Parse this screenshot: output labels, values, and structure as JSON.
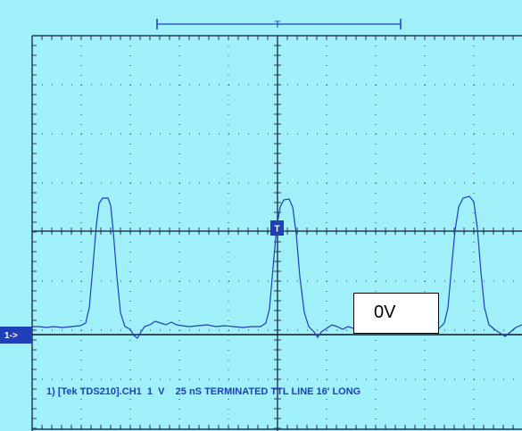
{
  "screen": {
    "background_color": "#9ff0f8",
    "grid_color": "#2a3b55",
    "trace_color": "#1f3fb8",
    "marker_color": "#1f3fb8"
  },
  "channel_marker": {
    "label": "1->"
  },
  "trigger_marker": {
    "label": "T"
  },
  "top_bracket": {
    "label": "T"
  },
  "reference_label": {
    "text": "0V"
  },
  "footer": {
    "text": "1) [Tek TDS210].CH1  1  V    25 nS TERMINATED TTL LINE 16' LONG"
  }
}
